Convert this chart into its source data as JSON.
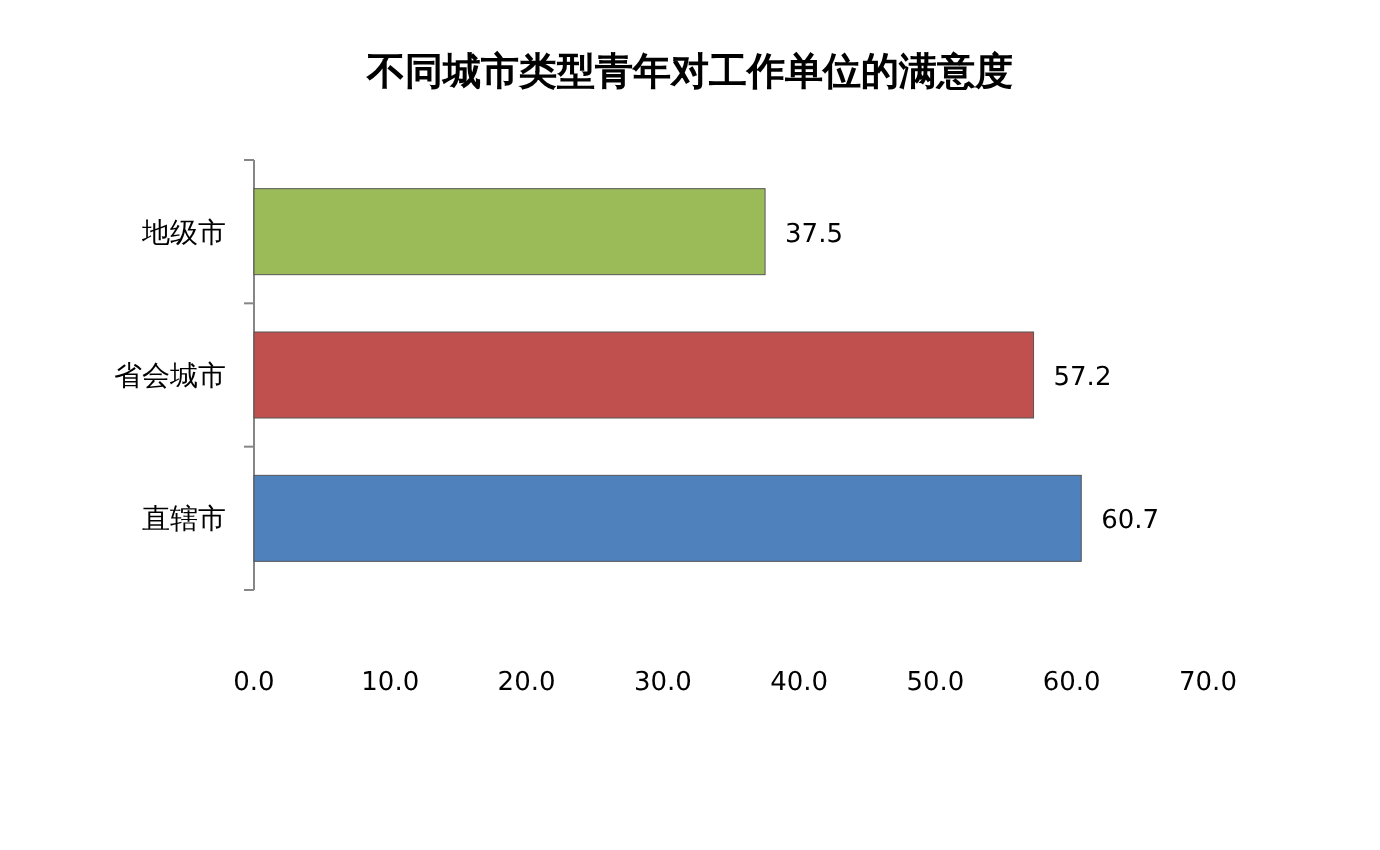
{
  "chart_data": {
    "type": "bar",
    "orientation": "horizontal",
    "title": "不同城市类型青年对工作单位的满意度",
    "categories": [
      "地级市",
      "省会城市",
      "直辖市"
    ],
    "values": [
      37.5,
      57.2,
      60.7
    ],
    "colors": [
      "#9bbb59",
      "#c0504d",
      "#4f81bd"
    ],
    "xlim": [
      0,
      70
    ],
    "xticks": [
      {
        "value": 0,
        "label": "0.0"
      },
      {
        "value": 10,
        "label": "10.0"
      },
      {
        "value": 20,
        "label": "20.0"
      },
      {
        "value": 30,
        "label": "30.0"
      },
      {
        "value": 40,
        "label": "40.0"
      },
      {
        "value": 50,
        "label": "50.0"
      },
      {
        "value": 60,
        "label": "60.0"
      },
      {
        "value": 70,
        "label": "70.0"
      }
    ],
    "data_labels": true
  }
}
